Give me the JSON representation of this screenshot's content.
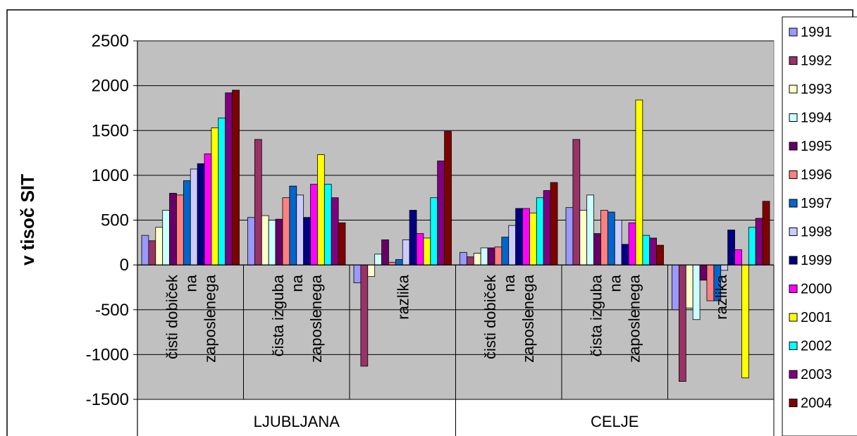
{
  "chart_data": {
    "type": "bar",
    "ylabel": "v tisoč SIT",
    "ylim": [
      -1500,
      2500
    ],
    "yticks": [
      -1500,
      -1000,
      -500,
      0,
      500,
      1000,
      1500,
      2000,
      2500
    ],
    "grid": "horizontal",
    "legend_position": "right",
    "groups": [
      "LJUBLJANA",
      "CELJE"
    ],
    "categories": [
      {
        "group": 0,
        "lines": [
          "čisti dobiček",
          "na",
          "zaposlenega"
        ]
      },
      {
        "group": 0,
        "lines": [
          "čista izguba",
          "na",
          "zaposlenega"
        ]
      },
      {
        "group": 0,
        "lines": [
          "razlika"
        ]
      },
      {
        "group": 1,
        "lines": [
          "čisti dobiček",
          "na",
          "zaposlenega"
        ]
      },
      {
        "group": 1,
        "lines": [
          "čista izguba",
          "na",
          "zaposlenega"
        ]
      },
      {
        "group": 1,
        "lines": [
          "razlika"
        ]
      }
    ],
    "series": [
      {
        "name": "1991",
        "color": "#9999ff",
        "values": [
          330,
          530,
          -200,
          140,
          640,
          -500
        ]
      },
      {
        "name": "1992",
        "color": "#993366",
        "values": [
          270,
          1400,
          -1130,
          90,
          1400,
          -1300
        ]
      },
      {
        "name": "1993",
        "color": "#ffffcc",
        "values": [
          420,
          550,
          -130,
          130,
          610,
          -480
        ]
      },
      {
        "name": "1994",
        "color": "#ccffff",
        "values": [
          610,
          500,
          120,
          190,
          780,
          -610
        ]
      },
      {
        "name": "1995",
        "color": "#660066",
        "values": [
          800,
          510,
          280,
          190,
          350,
          -170
        ]
      },
      {
        "name": "1996",
        "color": "#ff8080",
        "values": [
          780,
          750,
          30,
          200,
          610,
          -400
        ]
      },
      {
        "name": "1997",
        "color": "#0066cc",
        "values": [
          940,
          880,
          60,
          310,
          590,
          -400
        ]
      },
      {
        "name": "1998",
        "color": "#ccccff",
        "values": [
          1070,
          780,
          280,
          440,
          500,
          -60
        ]
      },
      {
        "name": "1999",
        "color": "#000080",
        "values": [
          1130,
          530,
          610,
          630,
          230,
          390
        ]
      },
      {
        "name": "2000",
        "color": "#ff00ff",
        "values": [
          1240,
          900,
          350,
          630,
          470,
          170
        ]
      },
      {
        "name": "2001",
        "color": "#ffff00",
        "values": [
          1530,
          1230,
          300,
          580,
          1840,
          -1260
        ]
      },
      {
        "name": "2002",
        "color": "#00ffff",
        "values": [
          1640,
          900,
          750,
          750,
          330,
          420
        ]
      },
      {
        "name": "2003",
        "color": "#800080",
        "values": [
          1920,
          750,
          1160,
          830,
          300,
          520
        ]
      },
      {
        "name": "2004",
        "color": "#800000",
        "values": [
          1950,
          470,
          1490,
          920,
          220,
          710
        ]
      }
    ]
  }
}
